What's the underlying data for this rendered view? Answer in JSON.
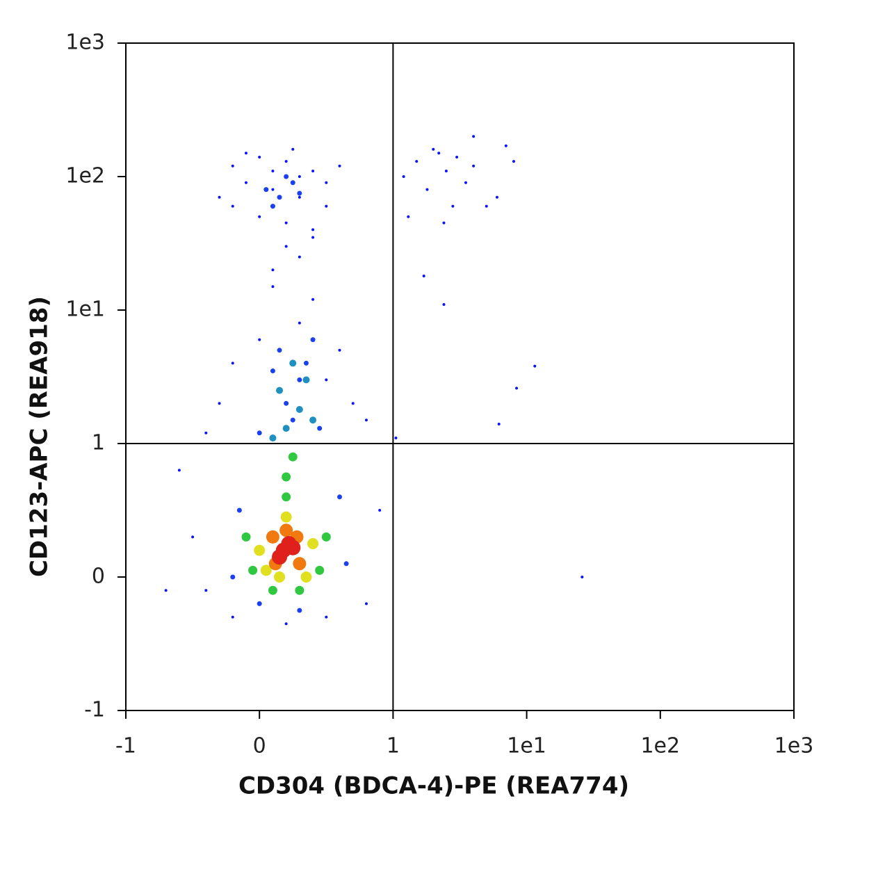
{
  "chart_data": {
    "type": "scatter",
    "scale": "biexponential",
    "x_label": "CD304 (BDCA-4)-PE (REA774)",
    "y_label": "CD123-APC (REA918)",
    "xlim": [
      -1,
      1000
    ],
    "ylim": [
      -1,
      1000
    ],
    "xticks": [
      -1,
      0,
      1,
      {
        "value": 10,
        "label": "1e1"
      },
      {
        "value": 100,
        "label": "1e2"
      },
      {
        "value": 1000,
        "label": "1e3"
      }
    ],
    "yticks": [
      -1,
      0,
      1,
      {
        "value": 10,
        "label": "1e1"
      },
      {
        "value": 100,
        "label": "1e2"
      },
      {
        "value": 1000,
        "label": "1e3"
      }
    ],
    "gates": {
      "x": 1,
      "y": 1
    },
    "series": [
      {
        "color": "#0a14ff",
        "x": [
          -0.2,
          0,
          0.2,
          0.4,
          0.5,
          -0.1,
          0.1,
          0.3,
          0.5,
          -0.2,
          0,
          0.2,
          0.4,
          0.3,
          0.1,
          0.6,
          -0.3,
          0.2,
          0.3,
          0.1,
          0.4,
          0.25,
          -0.1,
          0.1,
          0.4,
          0.3,
          0,
          0.6,
          -0.2,
          0.5,
          -0.3,
          0.7,
          0.8,
          -0.4,
          0.9,
          -0.5,
          -0.4,
          0.8,
          0.2,
          0.5,
          -0.2,
          1.05,
          -0.6,
          -0.7,
          1.5,
          2,
          2.5,
          3,
          4,
          1.2,
          1.8,
          2.2,
          3.5,
          5,
          6,
          4,
          8,
          1.3,
          2.4,
          7,
          2.8,
          1.7,
          2.4,
          6.2,
          8.4,
          11.5,
          26
        ],
        "y": [
          120,
          140,
          130,
          110,
          90,
          90,
          80,
          70,
          60,
          60,
          50,
          45,
          40,
          100,
          110,
          120,
          70,
          30,
          25,
          20,
          35,
          160,
          150,
          15,
          12,
          8,
          6,
          5,
          4,
          3,
          2,
          2,
          1.5,
          1.2,
          0.5,
          0.3,
          -0.1,
          -0.2,
          -0.35,
          -0.3,
          -0.3,
          1.1,
          0.8,
          -0.1,
          130,
          160,
          110,
          140,
          120,
          100,
          80,
          150,
          90,
          60,
          70,
          200,
          130,
          50,
          45,
          170,
          60,
          18,
          11,
          1.4,
          2.6,
          3.8,
          0
        ]
      },
      {
        "color": "#1a40f0",
        "x": [
          0.2,
          0.3,
          0.15,
          0.35,
          0.25,
          0.4,
          0.1,
          0.05,
          0.15,
          0.25,
          0.1,
          0.3,
          0.2,
          0.45,
          0,
          -0.15,
          0.6,
          0.65,
          -0.2,
          0.3,
          0
        ],
        "y": [
          2,
          3,
          5,
          4,
          1.5,
          6,
          3.5,
          80,
          70,
          90,
          60,
          75,
          100,
          1.3,
          1.2,
          0.5,
          0.6,
          0.1,
          0,
          -0.25,
          -0.2
        ]
      },
      {
        "color": "#2090c0",
        "x": [
          0.2,
          0.3,
          0.15,
          0.35,
          0.25,
          0.4,
          0.1
        ],
        "y": [
          1.3,
          1.8,
          2.5,
          3,
          4,
          1.5,
          1.1
        ]
      },
      {
        "color": "#30c840",
        "x": [
          -0.1,
          0.5,
          0.2,
          -0.05,
          0.45,
          0.1,
          0.3,
          0.2,
          0.25
        ],
        "y": [
          0.3,
          0.3,
          0.6,
          0.05,
          0.05,
          -0.1,
          -0.1,
          0.75,
          0.9
        ]
      },
      {
        "color": "#e0e020",
        "x": [
          0,
          0.4,
          0.2,
          0.05,
          0.35,
          0.15
        ],
        "y": [
          0.2,
          0.25,
          0.45,
          0.05,
          0,
          0
        ]
      },
      {
        "color": "#f07a10",
        "x": [
          0.1,
          0.3,
          0.2,
          0.12,
          0.28
        ],
        "y": [
          0.3,
          0.1,
          0.35,
          0.1,
          0.3
        ]
      },
      {
        "color": "#e0201a",
        "x": [
          0.18,
          0.22,
          0.15,
          0.25
        ],
        "y": [
          0.2,
          0.25,
          0.15,
          0.22
        ]
      }
    ]
  }
}
